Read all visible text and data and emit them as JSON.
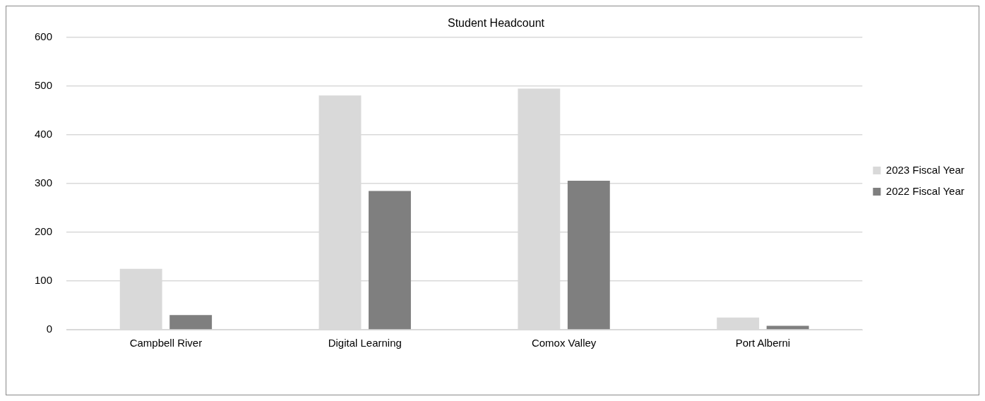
{
  "chart_data": {
    "type": "bar",
    "title": "Student Headcount",
    "categories": [
      "Campbell River",
      "Digital Learning",
      "Comox Valley",
      "Port Alberni"
    ],
    "series": [
      {
        "name": "2023 Fiscal Year",
        "color": "#d9d9d9",
        "values": [
          125,
          481,
          495,
          25
        ]
      },
      {
        "name": "2022 Fiscal Year",
        "color": "#7f7f7f",
        "values": [
          30,
          285,
          306,
          8
        ]
      }
    ],
    "ylim": [
      0,
      600
    ],
    "yticks": [
      0,
      100,
      200,
      300,
      400,
      500,
      600
    ],
    "grid": "y",
    "legend": "right"
  }
}
